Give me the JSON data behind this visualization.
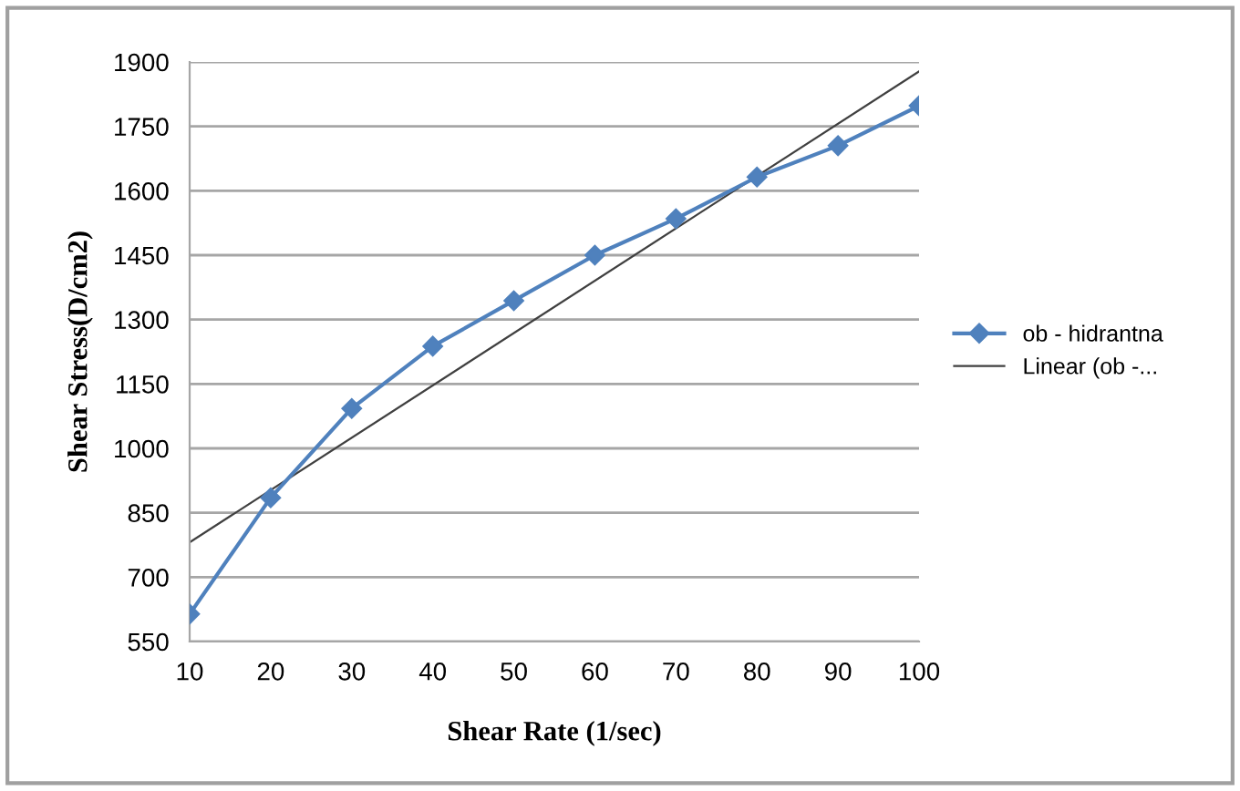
{
  "chart_data": {
    "type": "line",
    "xlabel": "Shear Rate (1/sec)",
    "ylabel": "Shear Stress(D/cm2)",
    "x": [
      10,
      20,
      30,
      40,
      50,
      60,
      70,
      80,
      90,
      100
    ],
    "series": [
      {
        "name": "ob - hidrantna",
        "color": "#4f81bd",
        "values": [
          614,
          885,
          1093,
          1238,
          1344,
          1450,
          1535,
          1632,
          1705,
          1798
        ],
        "marker": "diamond"
      },
      {
        "name": "Linear (ob -...",
        "color": "#404040",
        "type": "line",
        "x": [
          10,
          100
        ],
        "values": [
          781,
          1878
        ],
        "marker": "none"
      }
    ],
    "xlim": [
      10,
      100
    ],
    "xticks": [
      10,
      20,
      30,
      40,
      50,
      60,
      70,
      80,
      90,
      100
    ],
    "ylim": [
      550,
      1900
    ],
    "yticks": [
      550,
      700,
      850,
      1000,
      1150,
      1300,
      1450,
      1600,
      1750,
      1900
    ],
    "grid": "y",
    "legend": "right"
  }
}
